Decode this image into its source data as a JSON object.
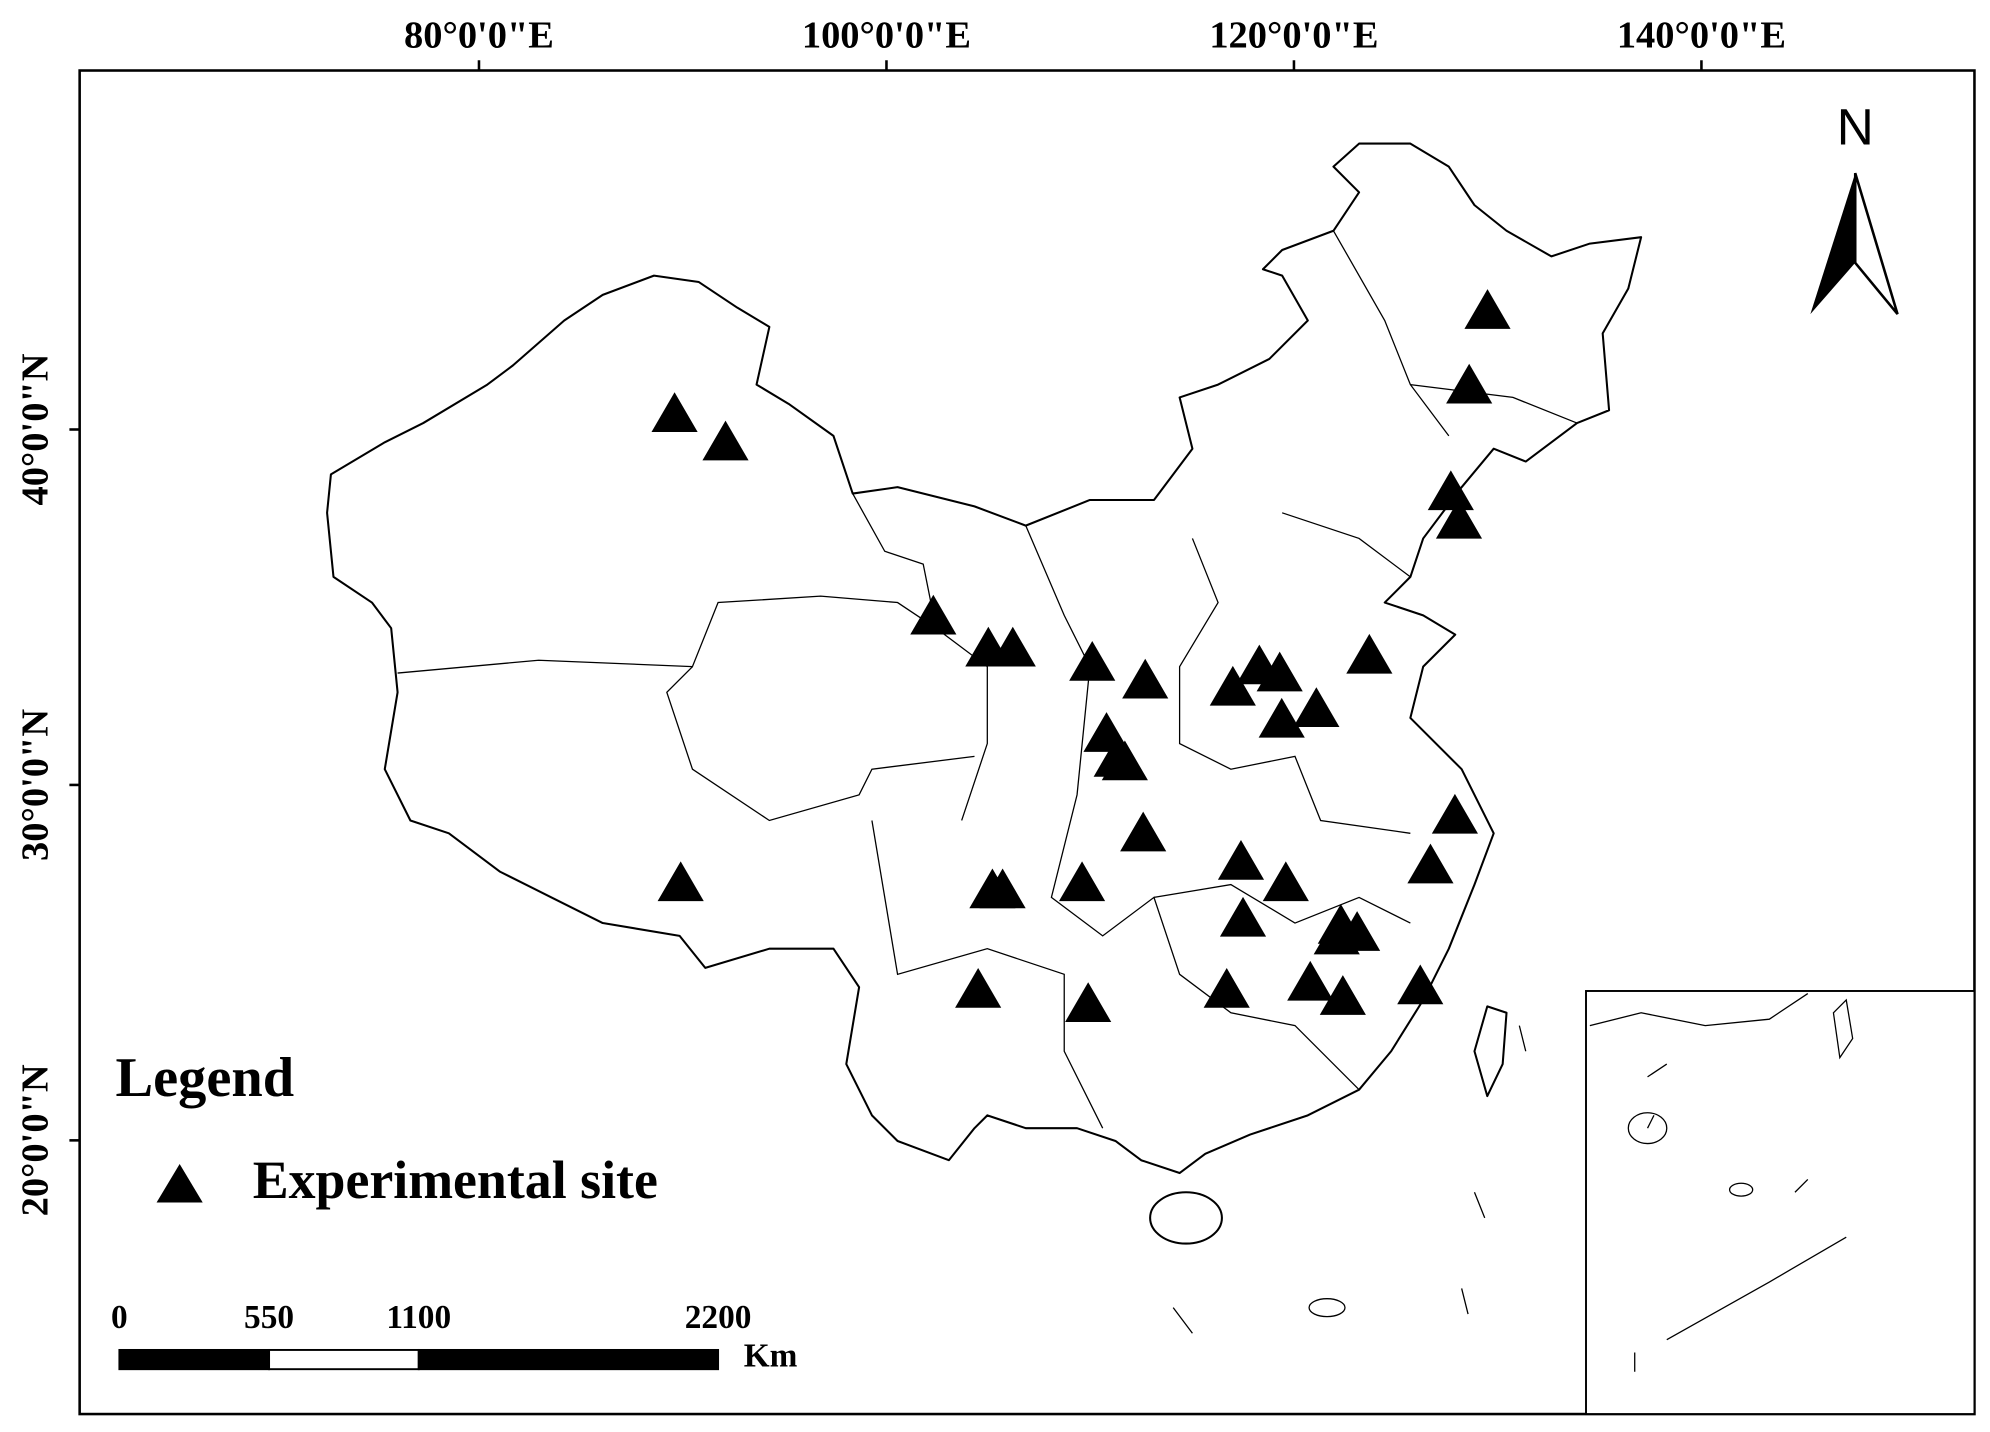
{
  "map": {
    "xlim": [
      60.4,
      153.4
    ],
    "ylim": [
      12.3,
      50.1
    ],
    "xticks": [
      {
        "value": 80,
        "label": "80°0'0\"E"
      },
      {
        "value": 100,
        "label": "100°0'0\"E"
      },
      {
        "value": 120,
        "label": "120°0'0\"E"
      },
      {
        "value": 140,
        "label": "140°0'0\"E"
      }
    ],
    "yticks": [
      {
        "value": 20,
        "label": "20°0'0\"N"
      },
      {
        "value": 30,
        "label": "30°0'0\"N"
      },
      {
        "value": 40,
        "label": "40°0'0\"N"
      }
    ],
    "north_label": "N",
    "legend": {
      "title": "Legend",
      "item": "Experimental site"
    },
    "scale_bar": {
      "ticks": [
        0,
        550,
        1100,
        2200
      ],
      "unit": "Km"
    },
    "sites": {
      "lon": [
        129.5,
        128.6,
        127.7,
        128.1,
        89.6,
        92.1,
        102.3,
        105.0,
        106.2,
        110.1,
        112.7,
        117.0,
        118.3,
        119.3,
        119.4,
        121.1,
        123.7,
        110.8,
        111.3,
        111.7,
        112.6,
        127.9,
        89.9,
        105.2,
        105.7,
        109.6,
        117.4,
        119.6,
        117.5,
        126.7,
        122.3,
        123.1,
        122.1,
        104.5,
        109.9,
        116.7,
        120.8,
        122.4,
        126.2
      ],
      "lat": [
        43.3,
        41.2,
        38.2,
        37.4,
        40.4,
        39.6,
        34.7,
        33.8,
        33.8,
        33.4,
        32.9,
        32.7,
        33.3,
        33.1,
        31.8,
        32.1,
        33.6,
        31.4,
        30.7,
        30.6,
        28.6,
        29.1,
        27.2,
        27.0,
        27.0,
        27.2,
        27.8,
        27.2,
        26.2,
        27.7,
        26.0,
        25.8,
        25.7,
        24.2,
        23.8,
        24.2,
        24.4,
        24.0,
        24.3
      ]
    }
  }
}
